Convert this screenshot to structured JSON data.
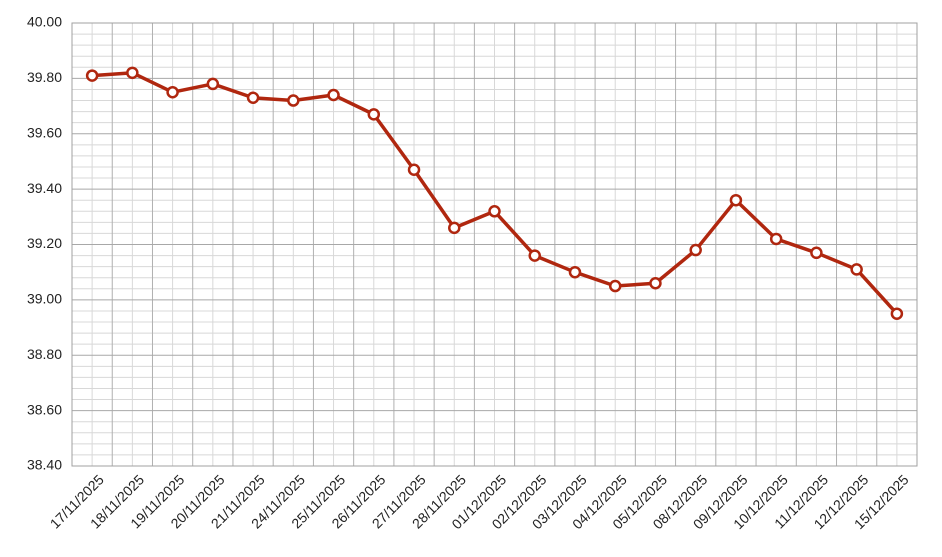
{
  "chart_data": {
    "type": "line",
    "categories": [
      "17/11/2025",
      "18/11/2025",
      "19/11/2025",
      "20/11/2025",
      "21/11/2025",
      "24/11/2025",
      "25/11/2025",
      "26/11/2025",
      "27/11/2025",
      "28/11/2025",
      "01/12/2025",
      "02/12/2025",
      "03/12/2025",
      "04/12/2025",
      "05/12/2025",
      "08/12/2025",
      "09/12/2025",
      "10/12/2025",
      "11/12/2025",
      "12/12/2025",
      "15/12/2025"
    ],
    "values": [
      39.81,
      39.82,
      39.75,
      39.78,
      39.73,
      39.72,
      39.74,
      39.67,
      39.47,
      39.26,
      39.32,
      39.16,
      39.1,
      39.05,
      39.06,
      39.18,
      39.36,
      39.22,
      39.17,
      39.11,
      38.95
    ],
    "color": "#b0270f",
    "ylim": [
      38.4,
      40.0
    ],
    "yticks": [
      {
        "value": 38.4,
        "label": "38.40"
      },
      {
        "value": 38.6,
        "label": "38.60"
      },
      {
        "value": 38.8,
        "label": "38.80"
      },
      {
        "value": 39.0,
        "label": "39.00"
      },
      {
        "value": 39.2,
        "label": "39.20"
      },
      {
        "value": 39.4,
        "label": "39.40"
      },
      {
        "value": 39.6,
        "label": "39.60"
      },
      {
        "value": 39.8,
        "label": "39.80"
      },
      {
        "value": 40.0,
        "label": "40.00"
      }
    ],
    "yticks_minor": [
      38.44,
      38.48,
      38.52,
      38.56,
      38.64,
      38.68,
      38.72,
      38.76,
      38.84,
      38.88,
      38.92,
      38.96,
      39.04,
      39.08,
      39.12,
      39.16,
      39.24,
      39.28,
      39.32,
      39.36,
      39.44,
      39.48,
      39.52,
      39.56,
      39.64,
      39.68,
      39.72,
      39.76,
      39.84,
      39.88,
      39.92,
      39.96
    ],
    "grid": true
  }
}
